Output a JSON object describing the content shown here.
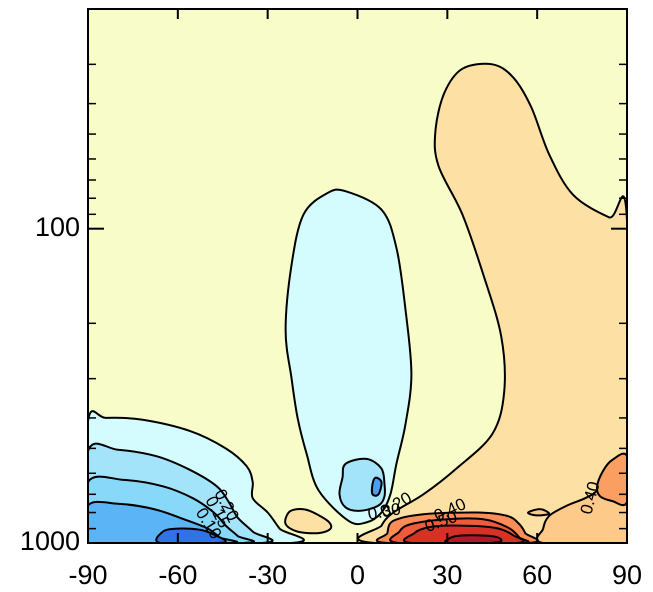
{
  "chart_data": {
    "type": "contour",
    "title": "",
    "xlabel": "",
    "ylabel": "",
    "x": {
      "range": [
        -90,
        90
      ],
      "ticks": [
        -90,
        -60,
        -30,
        0,
        30,
        60,
        90
      ],
      "tick_labels": [
        "-90",
        "-60",
        "-30",
        "0",
        "30",
        "60",
        "90"
      ]
    },
    "y": {
      "scale": "log",
      "range": [
        1000,
        20
      ],
      "ticks": [
        100,
        1000
      ],
      "tick_labels": [
        "100",
        "1000"
      ],
      "minor_ticks": [
        20,
        30,
        40,
        50,
        60,
        70,
        80,
        90,
        200,
        300,
        400,
        500,
        600,
        700,
        800,
        900
      ]
    },
    "contour_labels": [
      {
        "text": "0.20",
        "x": -44,
        "p": 760,
        "angle": 62
      },
      {
        "text": "0.15",
        "x": -47,
        "p": 800,
        "angle": 62
      },
      {
        "text": "0.10",
        "x": -50,
        "p": 870,
        "angle": 58
      },
      {
        "text": "0.20",
        "x": 13,
        "p": 760,
        "angle": -30
      },
      {
        "text": "0.30",
        "x": 9,
        "p": 800,
        "angle": -10
      },
      {
        "text": "0.40",
        "x": 31,
        "p": 790,
        "angle": -25
      },
      {
        "text": "0.50",
        "x": 28,
        "p": 860,
        "angle": -20
      },
      {
        "text": "0.40",
        "x": 78,
        "p": 720,
        "angle": -75
      }
    ],
    "regions": [
      {
        "name": "background",
        "fill": "#f7fcc8",
        "stroke": "none",
        "points": [
          [
            -90,
            20
          ],
          [
            90,
            20
          ],
          [
            90,
            1000
          ],
          [
            -90,
            1000
          ]
        ]
      },
      {
        "name": "warm-plume",
        "fill": "#fde0a4",
        "points": [
          [
            6,
            1000
          ],
          [
            8,
            880
          ],
          [
            12,
            800
          ],
          [
            22,
            700
          ],
          [
            33,
            580
          ],
          [
            45,
            450
          ],
          [
            49,
            330
          ],
          [
            48,
            220
          ],
          [
            42,
            140
          ],
          [
            35,
            90
          ],
          [
            27,
            63
          ],
          [
            26,
            49
          ],
          [
            29,
            37
          ],
          [
            35,
            31
          ],
          [
            45,
            30
          ],
          [
            52,
            33
          ],
          [
            58,
            41
          ],
          [
            64,
            58
          ],
          [
            72,
            78
          ],
          [
            84,
            92
          ],
          [
            90,
            94
          ],
          [
            90,
            1000
          ]
        ]
      },
      {
        "name": "warm-plume-2",
        "fill": "#fdca8a",
        "points": [
          [
            62,
            1000
          ],
          [
            62,
            900
          ],
          [
            64,
            820
          ],
          [
            70,
            760
          ],
          [
            76,
            720
          ],
          [
            80,
            680
          ],
          [
            84,
            590
          ],
          [
            90,
            560
          ],
          [
            90,
            1000
          ]
        ]
      },
      {
        "name": "warm-east-core",
        "fill": "#fb9e62",
        "points": [
          [
            90,
            530
          ],
          [
            85,
            545
          ],
          [
            82,
            590
          ],
          [
            80,
            660
          ],
          [
            81,
            710
          ],
          [
            85,
            735
          ],
          [
            90,
            740
          ]
        ]
      },
      {
        "name": "small-cell-west",
        "fill": "#fde0a4",
        "points": [
          [
            -23,
            800
          ],
          [
            -20,
            780
          ],
          [
            -16,
            790
          ],
          [
            -10,
            850
          ],
          [
            -9,
            900
          ],
          [
            -13,
            930
          ],
          [
            -20,
            920
          ],
          [
            -24,
            870
          ]
        ]
      },
      {
        "name": "small-cell-east",
        "fill": "#fdca8a",
        "points": [
          [
            57,
            800
          ],
          [
            61,
            780
          ],
          [
            64,
            805
          ],
          [
            62,
            815
          ],
          [
            59,
            815
          ]
        ]
      },
      {
        "name": "warm-surface-040",
        "fill": "#fc8d59",
        "points": [
          [
            10,
            1000
          ],
          [
            10,
            930
          ],
          [
            12,
            850
          ],
          [
            22,
            810
          ],
          [
            40,
            800
          ],
          [
            50,
            820
          ],
          [
            54,
            870
          ],
          [
            56,
            930
          ],
          [
            57,
            1000
          ]
        ]
      },
      {
        "name": "warm-surface-050",
        "fill": "#ef5a3c",
        "points": [
          [
            14,
            1000
          ],
          [
            14,
            920
          ],
          [
            18,
            870
          ],
          [
            30,
            840
          ],
          [
            42,
            840
          ],
          [
            50,
            890
          ],
          [
            54,
            960
          ],
          [
            54,
            1000
          ]
        ]
      },
      {
        "name": "warm-surface-060",
        "fill": "#d73027",
        "points": [
          [
            18,
            1000
          ],
          [
            19,
            930
          ],
          [
            24,
            890
          ],
          [
            34,
            880
          ],
          [
            46,
            895
          ],
          [
            52,
            945
          ],
          [
            53,
            1000
          ]
        ]
      },
      {
        "name": "warm-surface-core",
        "fill": "#b2182b",
        "points": [
          [
            30,
            1000
          ],
          [
            32,
            955
          ],
          [
            38,
            945
          ],
          [
            46,
            955
          ],
          [
            48,
            985
          ],
          [
            44,
            1000
          ]
        ]
      },
      {
        "name": "cool-column",
        "fill": "#d4fbfe",
        "points": [
          [
            -18,
            90
          ],
          [
            -10,
            77
          ],
          [
            -4,
            76
          ],
          [
            8,
            87
          ],
          [
            13,
            115
          ],
          [
            16,
            180
          ],
          [
            18,
            290
          ],
          [
            16,
            420
          ],
          [
            13,
            560
          ],
          [
            11,
            700
          ],
          [
            8,
            800
          ],
          [
            3,
            860
          ],
          [
            -3,
            850
          ],
          [
            -13,
            680
          ],
          [
            -17,
            520
          ],
          [
            -20,
            400
          ],
          [
            -22,
            300
          ],
          [
            -24,
            210
          ],
          [
            -22,
            130
          ]
        ]
      },
      {
        "name": "cool-column-core",
        "fill": "#a4e4fb",
        "points": [
          [
            -4,
            560
          ],
          [
            3,
            540
          ],
          [
            8,
            580
          ],
          [
            9,
            650
          ],
          [
            9,
            710
          ],
          [
            7,
            760
          ],
          [
            1,
            790
          ],
          [
            -4,
            770
          ],
          [
            -6,
            700
          ],
          [
            -5,
            620
          ]
        ]
      },
      {
        "name": "cool-column-inner",
        "fill": "#4a9ff0",
        "points": [
          [
            6,
            620
          ],
          [
            8,
            640
          ],
          [
            7,
            700
          ],
          [
            5,
            700
          ],
          [
            5,
            650
          ]
        ]
      },
      {
        "name": "cool-sw-010",
        "fill": "#d4fbfe",
        "points": [
          [
            -90,
            1000
          ],
          [
            -90,
            410
          ],
          [
            -84,
            400
          ],
          [
            -72,
            405
          ],
          [
            -56,
            440
          ],
          [
            -44,
            500
          ],
          [
            -37,
            570
          ],
          [
            -35,
            640
          ],
          [
            -35,
            720
          ],
          [
            -30,
            800
          ],
          [
            -26,
            900
          ],
          [
            -22,
            1000
          ]
        ]
      },
      {
        "name": "cool-sw-015",
        "fill": "#a4e4fb",
        "points": [
          [
            -90,
            1000
          ],
          [
            -90,
            510
          ],
          [
            -80,
            505
          ],
          [
            -67,
            530
          ],
          [
            -56,
            585
          ],
          [
            -47,
            660
          ],
          [
            -43,
            740
          ],
          [
            -40,
            830
          ],
          [
            -35,
            920
          ],
          [
            -32,
            1000
          ]
        ]
      },
      {
        "name": "cool-sw-020",
        "fill": "#88d8fa",
        "points": [
          [
            -90,
            1000
          ],
          [
            -90,
            640
          ],
          [
            -78,
            630
          ],
          [
            -65,
            660
          ],
          [
            -55,
            720
          ],
          [
            -48,
            800
          ],
          [
            -44,
            880
          ],
          [
            -40,
            950
          ],
          [
            -38,
            1000
          ]
        ]
      },
      {
        "name": "cool-sw-030",
        "fill": "#5ab4f5",
        "points": [
          [
            -90,
            1000
          ],
          [
            -90,
            760
          ],
          [
            -80,
            750
          ],
          [
            -68,
            780
          ],
          [
            -58,
            840
          ],
          [
            -50,
            900
          ],
          [
            -46,
            960
          ],
          [
            -43,
            1000
          ]
        ]
      },
      {
        "name": "cool-sw-core",
        "fill": "#3271e6",
        "points": [
          [
            -66,
            1000
          ],
          [
            -65,
            920
          ],
          [
            -60,
            900
          ],
          [
            -52,
            910
          ],
          [
            -47,
            950
          ],
          [
            -44,
            990
          ],
          [
            -48,
            1000
          ]
        ]
      }
    ]
  }
}
